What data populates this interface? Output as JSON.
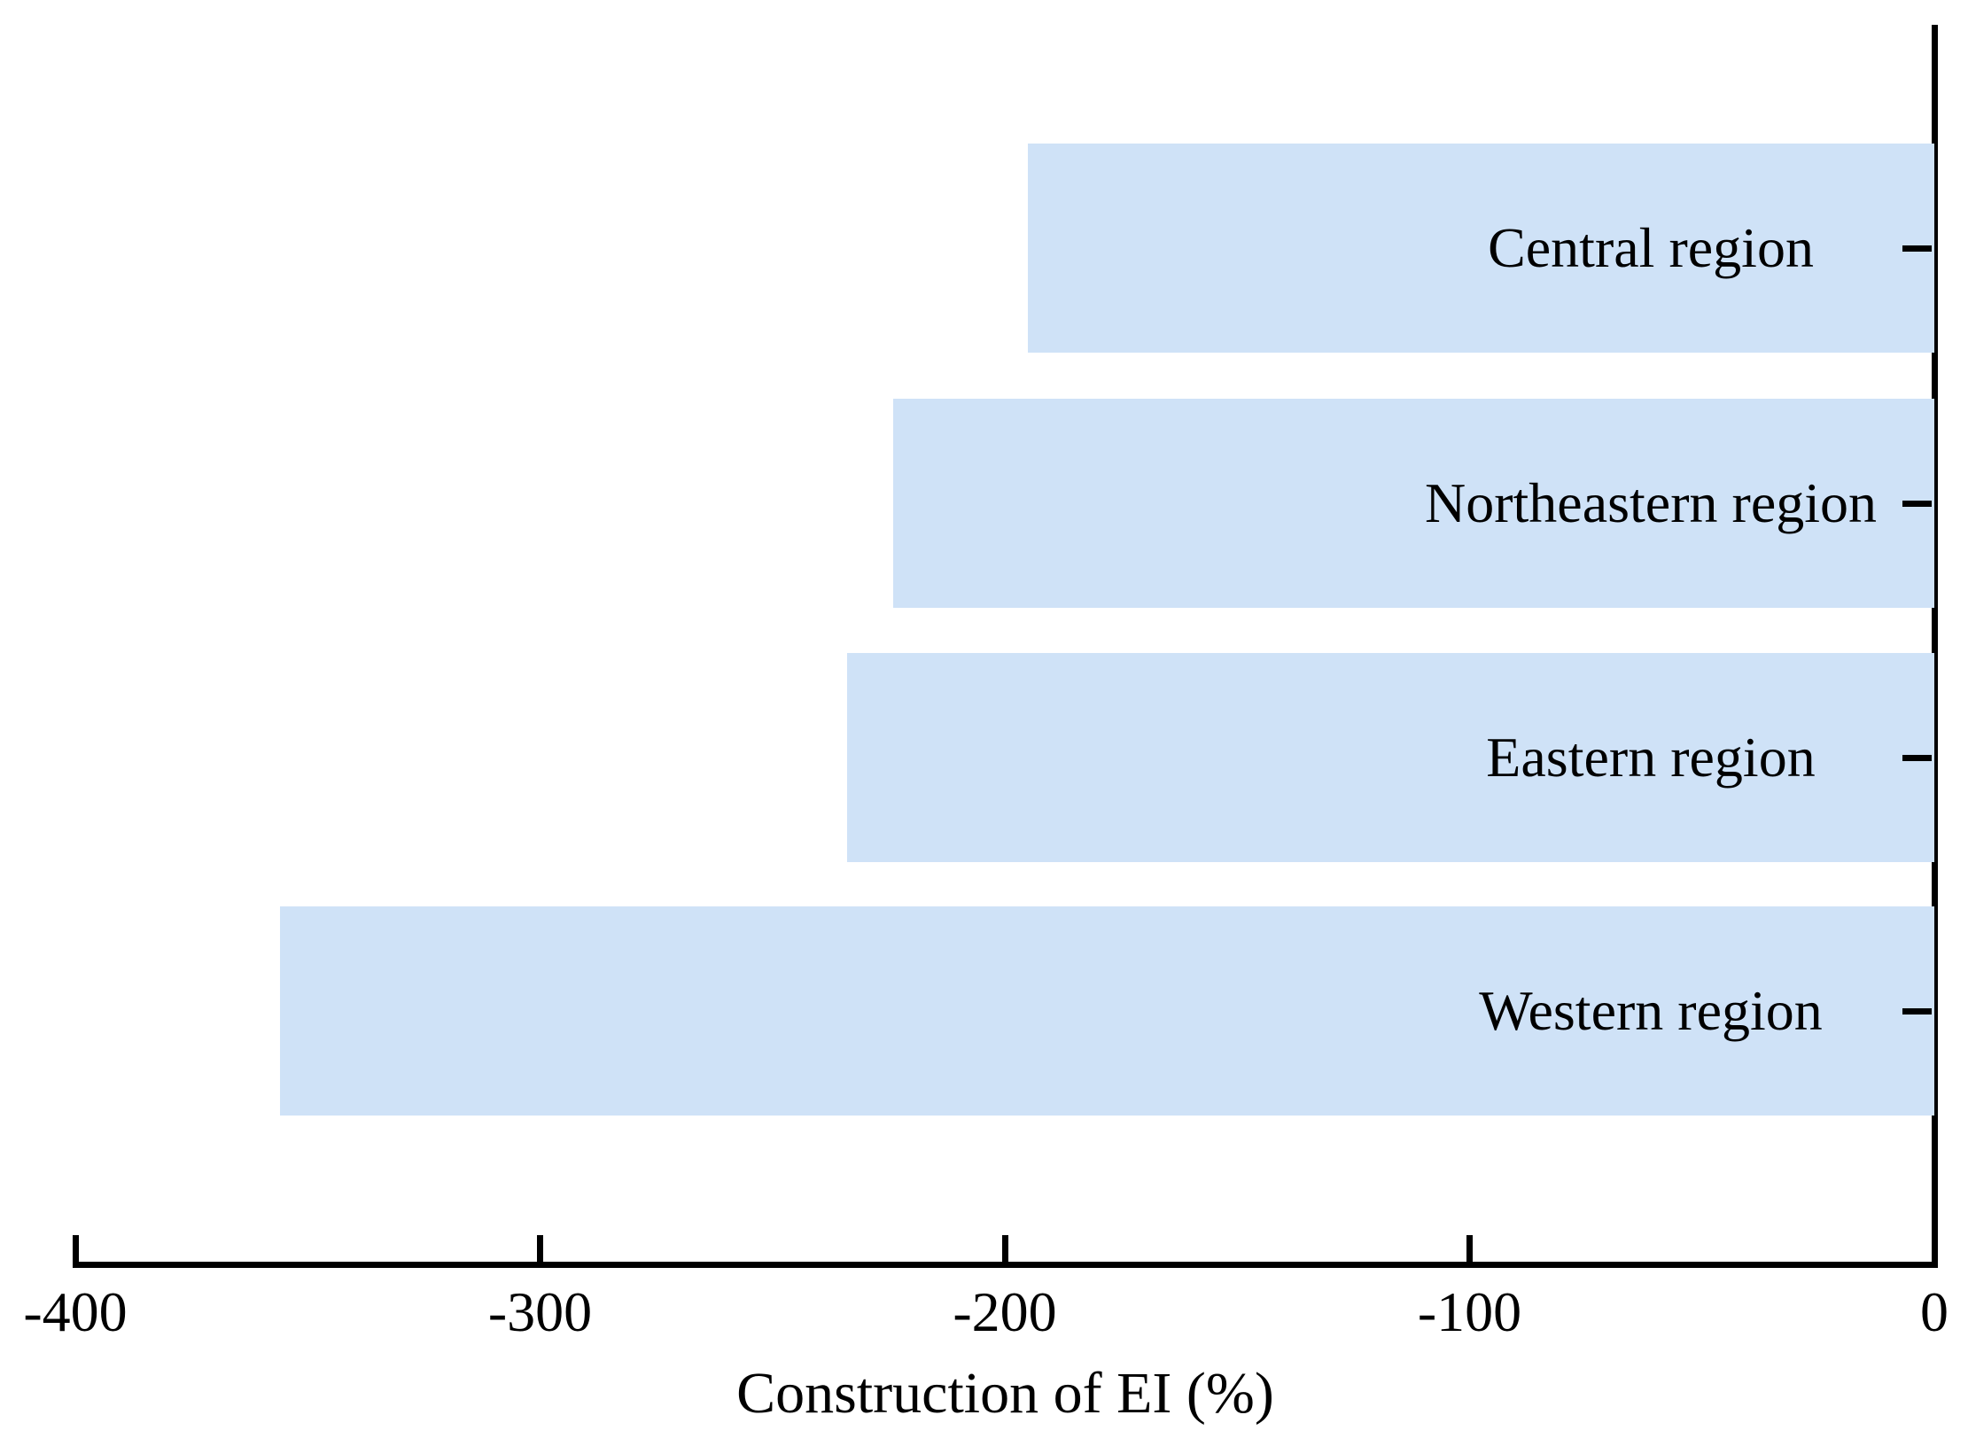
{
  "chart_data": {
    "type": "bar",
    "orientation": "horizontal",
    "title": "",
    "xlabel": "Construction of EI (%)",
    "ylabel": "",
    "categories": [
      "Central region",
      "Northeastern region",
      "Eastern region",
      "Western region"
    ],
    "values": [
      -195,
      -224,
      -234,
      -356
    ],
    "xlim": [
      -400,
      0
    ],
    "xticks": [
      -400,
      -300,
      -200,
      -100,
      0
    ],
    "grid": false,
    "legend": false,
    "axes_shown": [
      "bottom",
      "right"
    ],
    "bar_color": "#CFE2F7",
    "axis_color": "#000000",
    "text_color": "#000000"
  }
}
